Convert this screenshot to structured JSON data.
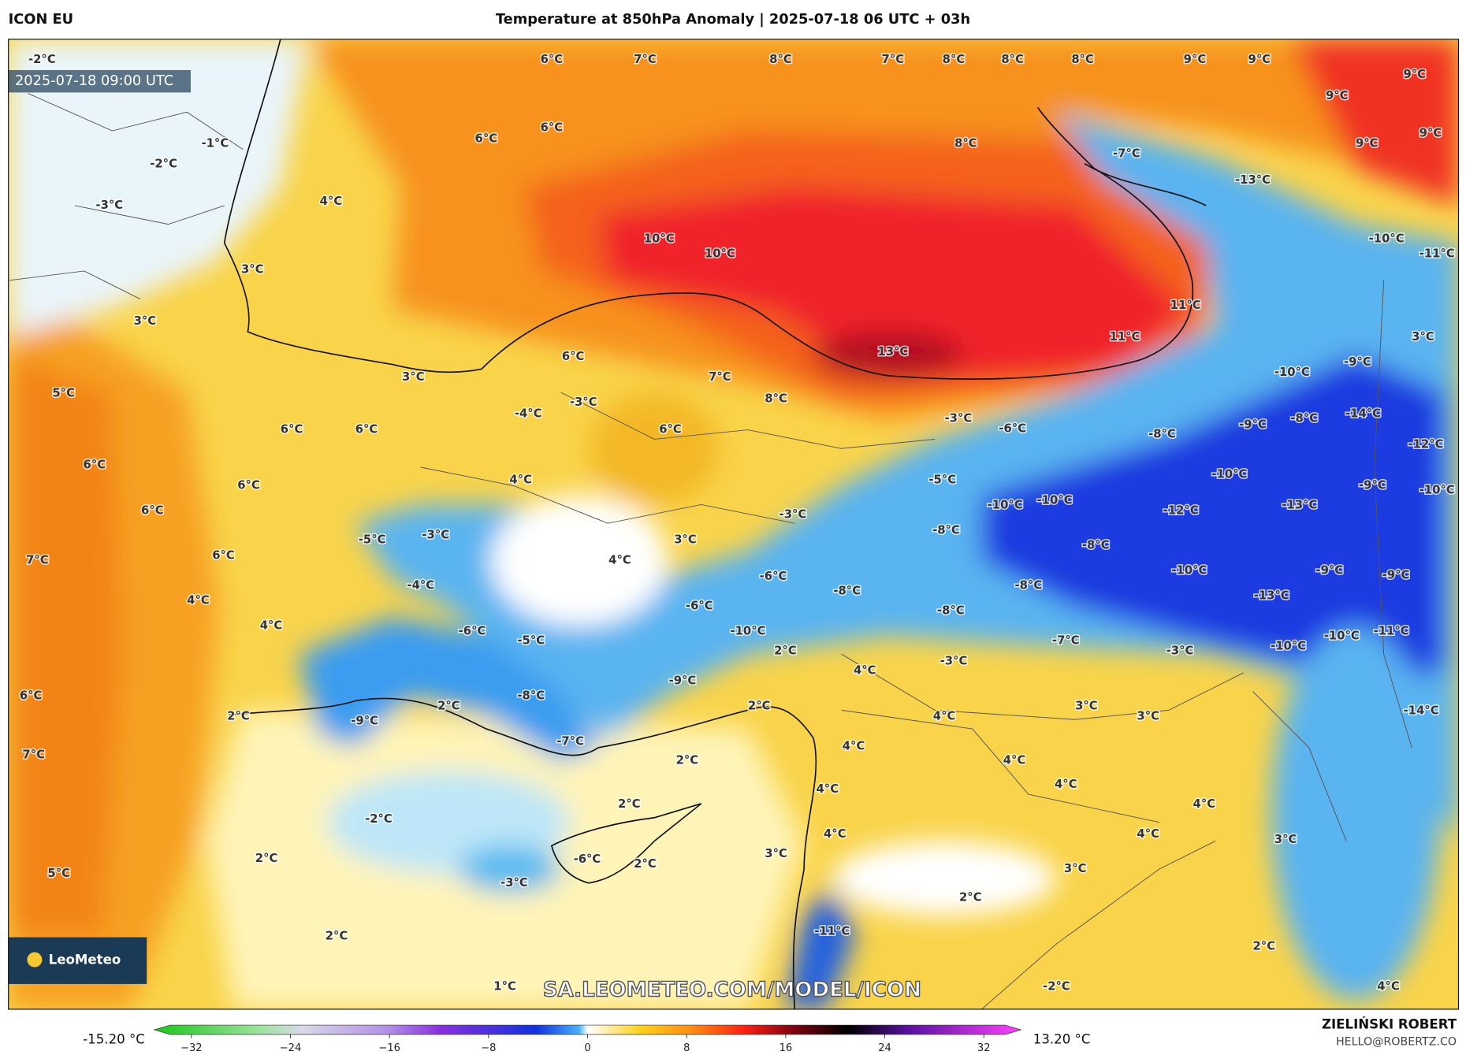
{
  "header": {
    "model": "ICON EU",
    "title": "Temperature at 850hPa Anomaly | 2025-07-18 06 UTC + 03h",
    "timestamp": "2025-07-18 09:00 UTC"
  },
  "map": {
    "watermark": "SA.LEOMETEO.COM/MODEL/ICON",
    "logo": "LeoMeteo",
    "labels": [
      "-2°C",
      "6°C",
      "7°C",
      "8°C",
      "7°C",
      "8°C",
      "8°C",
      "8°C",
      "9°C",
      "9°C",
      "9°C",
      "9°C",
      "6°C",
      "6°C",
      "-1°C",
      "8°C",
      "9°C",
      "9°C",
      "-7°C",
      "-2°C",
      "-13°C",
      "4°C",
      "-3°C",
      "10°C",
      "-10°C",
      "10°C",
      "-11°C",
      "3°C",
      "11°C",
      "3°C",
      "11°C",
      "3°C",
      "13°C",
      "6°C",
      "-9°C",
      "-10°C",
      "3°C",
      "7°C",
      "5°C",
      "8°C",
      "-3°C",
      "-4°C",
      "-14°C",
      "-3°C",
      "-8°C",
      "-6°C",
      "6°C",
      "6°C",
      "6°C",
      "-9°C",
      "-8°C",
      "-12°C",
      "6°C",
      "-10°C",
      "-5°C",
      "4°C",
      "6°C",
      "-9°C",
      "-10°C",
      "-10°C",
      "-10°C",
      "-13°C",
      "6°C",
      "-12°C",
      "-3°C",
      "-8°C",
      "-3°C",
      "-5°C",
      "3°C",
      "-8°C",
      "4°C",
      "7°C",
      "6°C",
      "-10°C",
      "-9°C",
      "-6°C",
      "-9°C",
      "-4°C",
      "-8°C",
      "-8°C",
      "-13°C",
      "4°C",
      "-6°C",
      "-8°C",
      "-10°C",
      "-6°C",
      "4°C",
      "-11°C",
      "-7°C",
      "-5°C",
      "-10°C",
      "-3°C",
      "-10°C",
      "2°C",
      "-3°C",
      "4°C",
      "-8°C",
      "6°C",
      "-9°C",
      "2°C",
      "2°C",
      "3°C",
      "3°C",
      "4°C",
      "2°C",
      "-14°C",
      "-9°C",
      "-7°C",
      "4°C",
      "7°C",
      "2°C",
      "4°C",
      "4°C",
      "4°C",
      "2°C",
      "4°C",
      "-2°C",
      "4°C",
      "4°C",
      "3°C",
      "2°C",
      "-6°C",
      "2°C",
      "3°C",
      "3°C",
      "5°C",
      "-3°C",
      "2°C",
      "-11°C",
      "2°C",
      "2°C",
      "1°C",
      "-2°C",
      "4°C"
    ]
  },
  "colorbar": {
    "min_label": "-15.20 °C",
    "max_label": "13.20 °C",
    "lim": [
      -35,
      35
    ],
    "ticks": [
      {
        "value": -32,
        "label": "−32"
      },
      {
        "value": -24,
        "label": "−24"
      },
      {
        "value": -16,
        "label": "−16"
      },
      {
        "value": -8,
        "label": "−8"
      },
      0,
      8,
      16,
      24,
      32
    ]
  },
  "footer": {
    "author": "ZIELIŃSKI ROBERT",
    "contact": "HELLO@ROBERTZ.CO"
  }
}
